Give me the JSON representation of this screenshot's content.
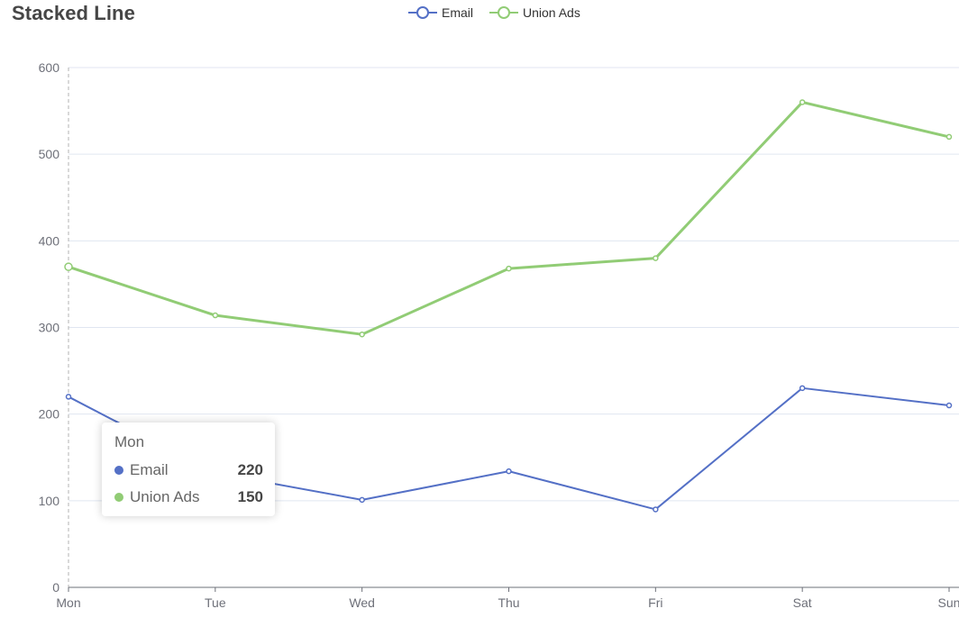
{
  "title": "Stacked Line",
  "legend": [
    {
      "name": "Email",
      "color": "#5470c6"
    },
    {
      "name": "Union Ads",
      "color": "#91cc75"
    }
  ],
  "tooltip": {
    "header": "Mon",
    "rows": [
      {
        "name": "Email",
        "value": "220",
        "color": "#5470c6"
      },
      {
        "name": "Union Ads",
        "value": "150",
        "color": "#91cc75"
      }
    ]
  },
  "chart_data": {
    "type": "line",
    "stacked": true,
    "categories": [
      "Mon",
      "Tue",
      "Wed",
      "Thu",
      "Fri",
      "Sat",
      "Sun"
    ],
    "series": [
      {
        "name": "Email",
        "values": [
          220,
          132,
          101,
          134,
          90,
          230,
          210
        ],
        "color": "#5470c6"
      },
      {
        "name": "Union Ads",
        "values": [
          150,
          182,
          191,
          234,
          290,
          330,
          310
        ],
        "color": "#91cc75"
      }
    ],
    "yticks": [
      0,
      100,
      200,
      300,
      400,
      500,
      600
    ],
    "ylim": [
      0,
      600
    ],
    "grid": true,
    "legend_position": "top-center"
  }
}
